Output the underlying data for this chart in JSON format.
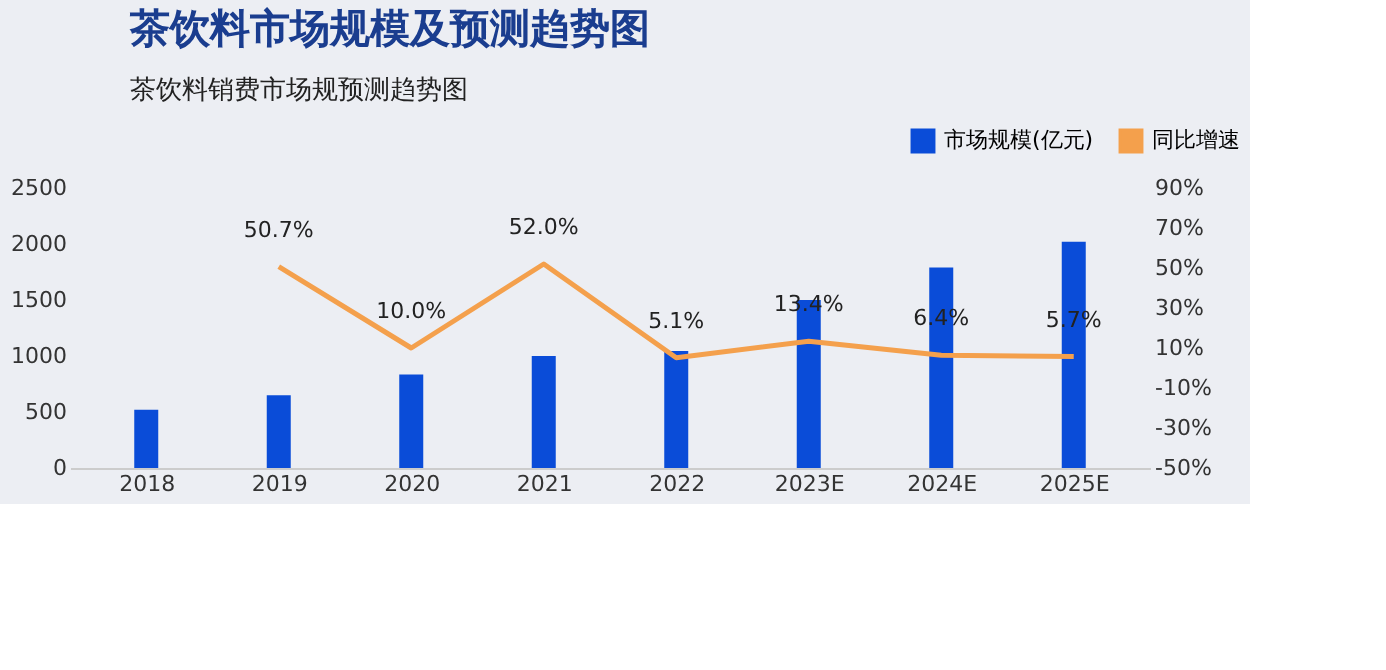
{
  "chart_data": {
    "type": "bar",
    "title": "茶饮料市场规模及预测趋势图",
    "subtitle": "茶饮料销费市场规预测趋势图",
    "categories": [
      "2018",
      "2019",
      "2020",
      "2021",
      "2022",
      "2023E",
      "2024E",
      "2025E"
    ],
    "series": [
      {
        "name": "市场规模(亿元)",
        "color": "#0a4cd8",
        "values": [
          520,
          650,
          835,
          1000,
          1045,
          1500,
          1790,
          2020
        ]
      },
      {
        "name": "同比增速",
        "color": "#f4a04c",
        "type": "line",
        "axis": "y2",
        "values": [
          null,
          50.7,
          10.0,
          52.0,
          5.1,
          13.4,
          6.4,
          5.7
        ],
        "value_labels": [
          null,
          "50.7%",
          "10.0%",
          "52.0%",
          "5.1%",
          "13.4%",
          "6.4%",
          "5.7%"
        ]
      }
    ],
    "ylim": [
      0,
      2500
    ],
    "yticks": [
      0,
      500,
      1000,
      1500,
      2000,
      2500
    ],
    "y2lim": [
      -50,
      90
    ],
    "y2ticks": [
      {
        "value": -50,
        "label": "-50%"
      },
      {
        "value": -30,
        "label": "-30%"
      },
      {
        "value": -10,
        "label": "-10%"
      },
      {
        "value": 10,
        "label": "10%"
      },
      {
        "value": 30,
        "label": "30%"
      },
      {
        "value": 50,
        "label": "50%"
      },
      {
        "value": 70,
        "label": "70%"
      },
      {
        "value": 90,
        "label": "90%"
      }
    ],
    "grid": false,
    "legend": "top right",
    "marker": "none"
  }
}
